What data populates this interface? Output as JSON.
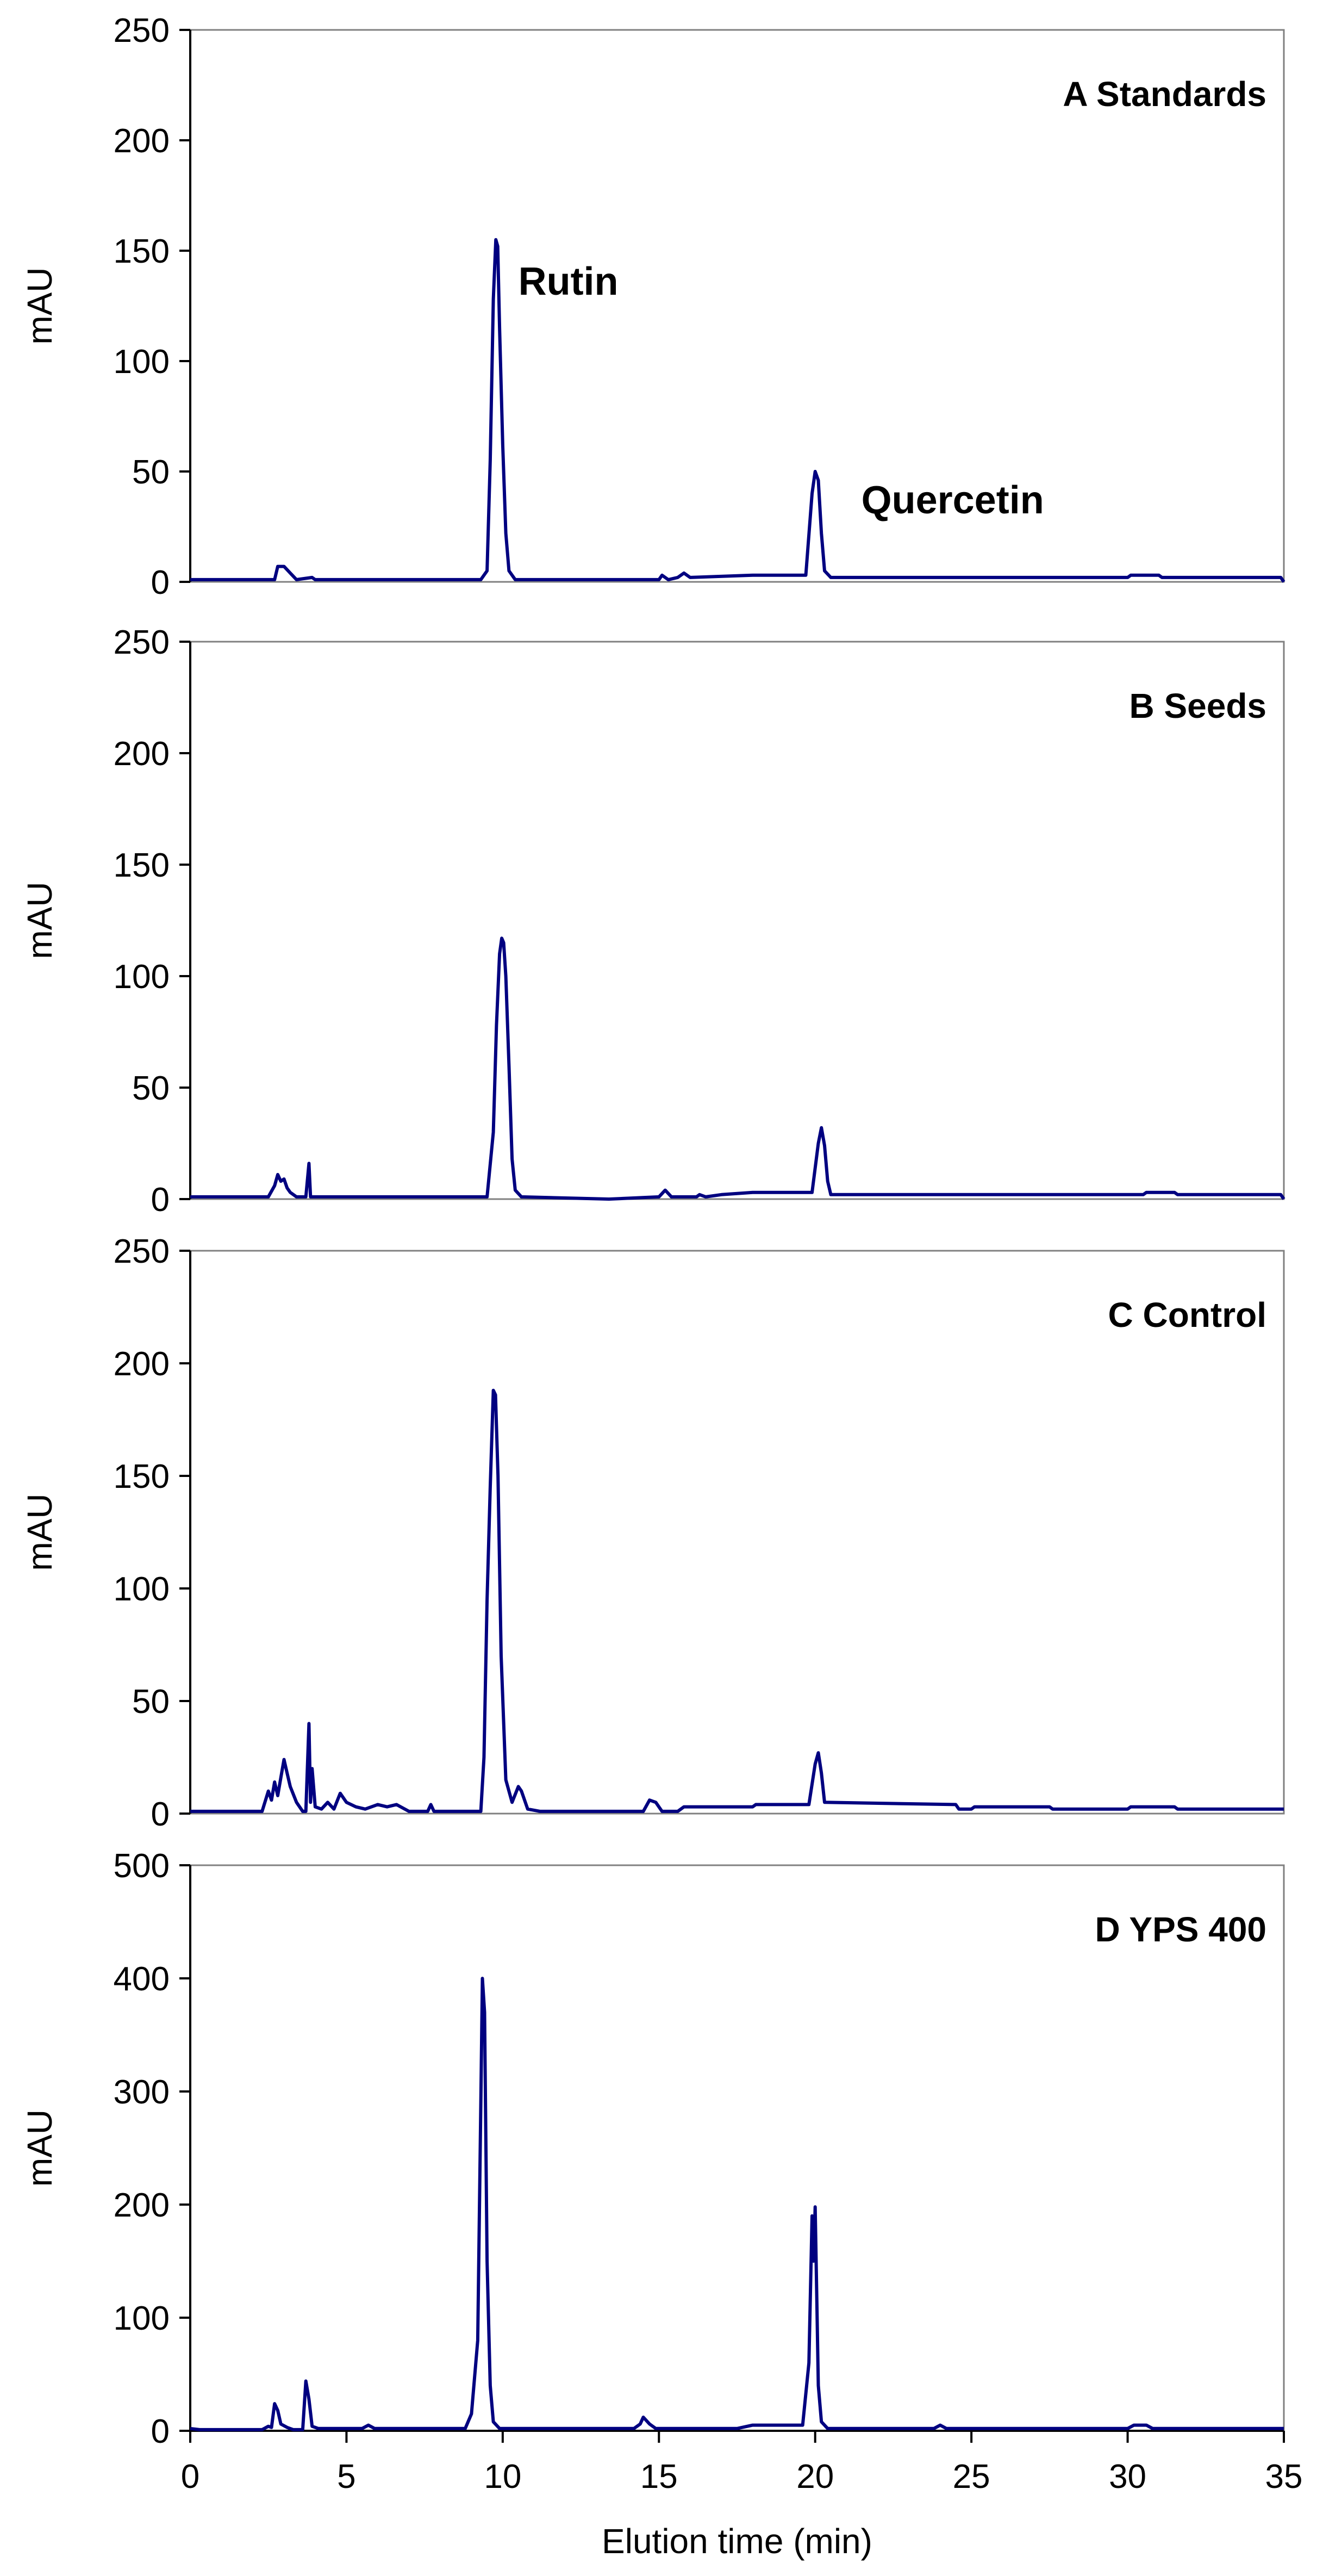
{
  "chart_data": [
    {
      "type": "line",
      "panel_label": "A  Standards",
      "ylabel": "mAU",
      "ylim": [
        0,
        250
      ],
      "yticks": [
        0,
        50,
        100,
        150,
        200,
        250
      ],
      "xlim": [
        0,
        35
      ],
      "annotations": [
        {
          "text": "Rutin",
          "x": 12.1,
          "y": 130
        },
        {
          "text": "Quercetin",
          "x": 24.4,
          "y": 31
        }
      ],
      "series": [
        {
          "color": "#000080",
          "points": [
            [
              0,
              1
            ],
            [
              2.7,
              1
            ],
            [
              2.8,
              7
            ],
            [
              3.0,
              7
            ],
            [
              3.2,
              4
            ],
            [
              3.4,
              1
            ],
            [
              3.9,
              2
            ],
            [
              4.0,
              1
            ],
            [
              9.3,
              1
            ],
            [
              9.5,
              5
            ],
            [
              9.6,
              55
            ],
            [
              9.7,
              128
            ],
            [
              9.78,
              155
            ],
            [
              9.84,
              152
            ],
            [
              9.9,
              115
            ],
            [
              10.0,
              62
            ],
            [
              10.1,
              22
            ],
            [
              10.2,
              5
            ],
            [
              10.4,
              1
            ],
            [
              15.0,
              1
            ],
            [
              15.1,
              3
            ],
            [
              15.3,
              1
            ],
            [
              15.6,
              2
            ],
            [
              15.8,
              4
            ],
            [
              16.0,
              2
            ],
            [
              18.0,
              3
            ],
            [
              19.0,
              3
            ],
            [
              19.7,
              3
            ],
            [
              19.9,
              40
            ],
            [
              20.0,
              50
            ],
            [
              20.1,
              46
            ],
            [
              20.2,
              22
            ],
            [
              20.3,
              5
            ],
            [
              20.5,
              2
            ],
            [
              30.0,
              2
            ],
            [
              30.1,
              3
            ],
            [
              31.0,
              3
            ],
            [
              31.1,
              2
            ],
            [
              34.9,
              2
            ],
            [
              35,
              0
            ]
          ]
        }
      ]
    },
    {
      "type": "line",
      "panel_label": "B  Seeds",
      "ylabel": "mAU",
      "ylim": [
        0,
        250
      ],
      "yticks": [
        0,
        50,
        100,
        150,
        200,
        250
      ],
      "xlim": [
        0,
        35
      ],
      "series": [
        {
          "color": "#000080",
          "points": [
            [
              0,
              1
            ],
            [
              2.5,
              1
            ],
            [
              2.7,
              6
            ],
            [
              2.8,
              11
            ],
            [
              2.9,
              8
            ],
            [
              3.0,
              9
            ],
            [
              3.1,
              5
            ],
            [
              3.2,
              3
            ],
            [
              3.4,
              1
            ],
            [
              3.7,
              1
            ],
            [
              3.8,
              16
            ],
            [
              3.85,
              1
            ],
            [
              9.5,
              1
            ],
            [
              9.7,
              30
            ],
            [
              9.8,
              78
            ],
            [
              9.9,
              110
            ],
            [
              9.97,
              117
            ],
            [
              10.03,
              115
            ],
            [
              10.1,
              100
            ],
            [
              10.2,
              60
            ],
            [
              10.3,
              18
            ],
            [
              10.4,
              4
            ],
            [
              10.6,
              1
            ],
            [
              13.4,
              0
            ],
            [
              15.0,
              1
            ],
            [
              15.2,
              4
            ],
            [
              15.4,
              1
            ],
            [
              16.2,
              1
            ],
            [
              16.3,
              2
            ],
            [
              16.5,
              1
            ],
            [
              17.0,
              2
            ],
            [
              18.0,
              3
            ],
            [
              19.9,
              3
            ],
            [
              20.1,
              25
            ],
            [
              20.2,
              32
            ],
            [
              20.3,
              24
            ],
            [
              20.4,
              8
            ],
            [
              20.5,
              2
            ],
            [
              30.5,
              2
            ],
            [
              30.6,
              3
            ],
            [
              31.5,
              3
            ],
            [
              31.6,
              2
            ],
            [
              34.9,
              2
            ],
            [
              35,
              0
            ]
          ]
        }
      ]
    },
    {
      "type": "line",
      "panel_label": "C  Control",
      "ylabel": "mAU",
      "ylim": [
        0,
        250
      ],
      "yticks": [
        0,
        50,
        100,
        150,
        200,
        250
      ],
      "xlim": [
        0,
        35
      ],
      "series": [
        {
          "color": "#000080",
          "points": [
            [
              0,
              1
            ],
            [
              2.3,
              1
            ],
            [
              2.5,
              10
            ],
            [
              2.6,
              6
            ],
            [
              2.7,
              14
            ],
            [
              2.8,
              8
            ],
            [
              2.9,
              16
            ],
            [
              3.0,
              24
            ],
            [
              3.1,
              18
            ],
            [
              3.2,
              12
            ],
            [
              3.4,
              5
            ],
            [
              3.6,
              1
            ],
            [
              3.7,
              1
            ],
            [
              3.8,
              40
            ],
            [
              3.85,
              5
            ],
            [
              3.9,
              20
            ],
            [
              4.0,
              3
            ],
            [
              4.2,
              2
            ],
            [
              4.4,
              5
            ],
            [
              4.6,
              2
            ],
            [
              4.8,
              9
            ],
            [
              5.0,
              5
            ],
            [
              5.3,
              3
            ],
            [
              5.6,
              2
            ],
            [
              6.0,
              4
            ],
            [
              6.3,
              3
            ],
            [
              6.6,
              4
            ],
            [
              7.0,
              1
            ],
            [
              7.6,
              1
            ],
            [
              7.7,
              4
            ],
            [
              7.8,
              1
            ],
            [
              9.3,
              1
            ],
            [
              9.4,
              25
            ],
            [
              9.5,
              95
            ],
            [
              9.6,
              145
            ],
            [
              9.7,
              188
            ],
            [
              9.77,
              186
            ],
            [
              9.85,
              150
            ],
            [
              9.95,
              70
            ],
            [
              10.1,
              15
            ],
            [
              10.3,
              5
            ],
            [
              10.5,
              12
            ],
            [
              10.6,
              10
            ],
            [
              10.8,
              2
            ],
            [
              11.2,
              1
            ],
            [
              14.5,
              1
            ],
            [
              14.7,
              6
            ],
            [
              14.9,
              5
            ],
            [
              15.1,
              1
            ],
            [
              15.6,
              1
            ],
            [
              15.8,
              3
            ],
            [
              18.0,
              3
            ],
            [
              18.1,
              4
            ],
            [
              19.8,
              4
            ],
            [
              20.0,
              22
            ],
            [
              20.1,
              27
            ],
            [
              20.2,
              18
            ],
            [
              20.3,
              5
            ],
            [
              24.5,
              4
            ],
            [
              24.6,
              2
            ],
            [
              25.0,
              2
            ],
            [
              25.1,
              3
            ],
            [
              27.5,
              3
            ],
            [
              27.6,
              2
            ],
            [
              30.0,
              2
            ],
            [
              30.1,
              3
            ],
            [
              31.5,
              3
            ],
            [
              31.6,
              2
            ],
            [
              35,
              2
            ]
          ]
        }
      ]
    },
    {
      "type": "line",
      "panel_label": "D  YPS 400",
      "ylabel": "mAU",
      "xlabel": "Elution time (min)",
      "ylim": [
        0,
        500
      ],
      "yticks": [
        0,
        100,
        200,
        300,
        400,
        500
      ],
      "xlim": [
        0,
        35
      ],
      "xticks": [
        0,
        5,
        10,
        15,
        20,
        25,
        30,
        35
      ],
      "series": [
        {
          "color": "#000080",
          "points": [
            [
              0,
              2
            ],
            [
              0.3,
              1
            ],
            [
              2.3,
              1
            ],
            [
              2.5,
              4
            ],
            [
              2.6,
              3
            ],
            [
              2.7,
              24
            ],
            [
              2.8,
              18
            ],
            [
              2.9,
              6
            ],
            [
              3.1,
              3
            ],
            [
              3.3,
              1
            ],
            [
              3.6,
              1
            ],
            [
              3.7,
              44
            ],
            [
              3.8,
              28
            ],
            [
              3.9,
              4
            ],
            [
              4.1,
              2
            ],
            [
              5.5,
              2
            ],
            [
              5.7,
              5
            ],
            [
              5.9,
              2
            ],
            [
              6.5,
              2
            ],
            [
              7.5,
              2
            ],
            [
              8.8,
              2
            ],
            [
              9.0,
              15
            ],
            [
              9.2,
              80
            ],
            [
              9.3,
              290
            ],
            [
              9.35,
              400
            ],
            [
              9.42,
              370
            ],
            [
              9.5,
              150
            ],
            [
              9.6,
              40
            ],
            [
              9.7,
              8
            ],
            [
              9.9,
              2
            ],
            [
              10.5,
              2
            ],
            [
              11.2,
              2
            ],
            [
              12.0,
              2
            ],
            [
              14.2,
              2
            ],
            [
              14.4,
              6
            ],
            [
              14.5,
              12
            ],
            [
              14.7,
              6
            ],
            [
              14.9,
              2
            ],
            [
              15.5,
              2
            ],
            [
              16.0,
              2
            ],
            [
              17.5,
              2
            ],
            [
              18.0,
              5
            ],
            [
              19.6,
              5
            ],
            [
              19.8,
              60
            ],
            [
              19.9,
              190
            ],
            [
              19.95,
              150
            ],
            [
              20.0,
              198
            ],
            [
              20.05,
              120
            ],
            [
              20.1,
              40
            ],
            [
              20.2,
              8
            ],
            [
              20.4,
              2
            ],
            [
              23.8,
              2
            ],
            [
              24.0,
              5
            ],
            [
              24.2,
              2
            ],
            [
              30.0,
              2
            ],
            [
              30.2,
              5
            ],
            [
              30.6,
              5
            ],
            [
              30.8,
              2
            ],
            [
              35,
              2
            ]
          ]
        }
      ]
    }
  ]
}
